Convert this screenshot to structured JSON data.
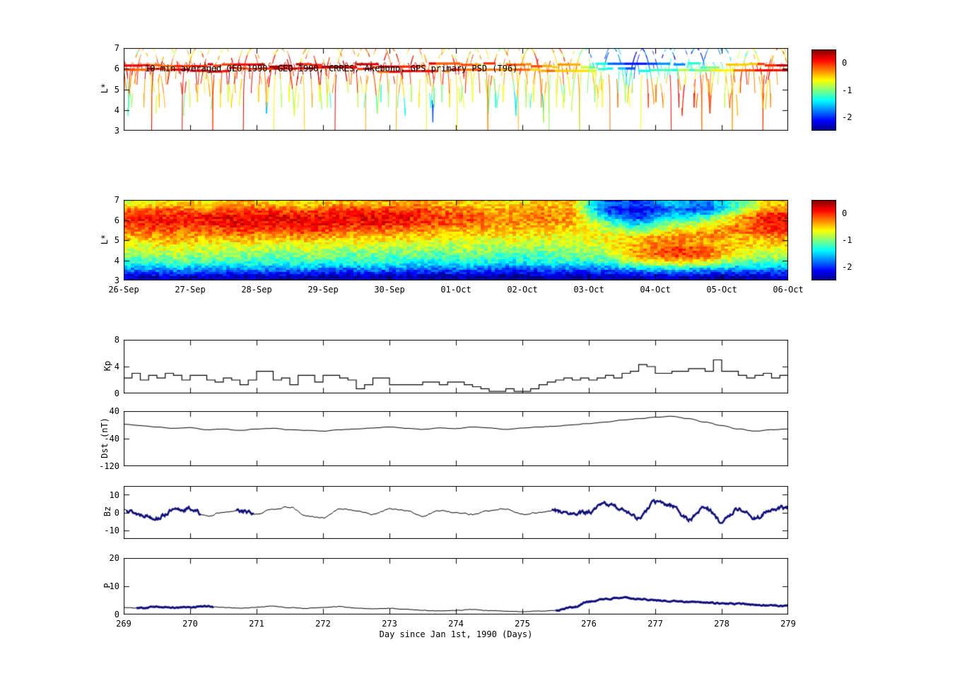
{
  "figure": {
    "background": "#ffffff"
  },
  "colors": {
    "axis": "#000000",
    "line": "#000000",
    "thick_line": "#10107a"
  },
  "colormap": {
    "name": "jet",
    "range": [
      -2.5,
      0.5
    ]
  },
  "chart_data": [
    {
      "id": "psd_scatter",
      "type": "scatter",
      "title": "10-min averaged GEO-1990, GEO-1990, CRRES, Akebono, GPS  primary PSD (T96)",
      "ylabel": "L*",
      "ylim": [
        3,
        7
      ],
      "yticks": [
        7,
        6,
        5,
        4,
        3
      ],
      "xlim": [
        269,
        279
      ],
      "colorbar": {
        "ticks": [
          0,
          -1,
          -2
        ],
        "range": [
          -2.5,
          0.5
        ]
      },
      "satellites": [
        {
          "name": "GEO-1990",
          "kind": "geo",
          "L": 5.95,
          "lw": 3.2
        },
        {
          "name": "GEO-1990",
          "kind": "geo",
          "L": 6.15,
          "lw": 3.2
        },
        {
          "name": "CRRES",
          "kind": "orbit",
          "period": 0.417,
          "phase": 0.1,
          "Lmin": 3.4,
          "Lmax": 7.0,
          "sharpness": 0.5,
          "lw": 1.3
        },
        {
          "name": "Akebono",
          "kind": "orbit",
          "period": 0.115,
          "phase": 0.32,
          "Lmin": 3.0,
          "Lmax": 6.3,
          "sharpness": 0.3,
          "lw": 1.0
        },
        {
          "name": "GPS",
          "kind": "orbit",
          "period": 0.5,
          "phase": 0.62,
          "Lmin": 4.1,
          "Lmax": 7.2,
          "sharpness": 0.7,
          "lw": 1.0
        }
      ]
    },
    {
      "id": "psd_map",
      "type": "heatmap",
      "ylabel": "L*",
      "ylim": [
        3,
        7
      ],
      "yticks": [
        7,
        6,
        5,
        4,
        3
      ],
      "xlim": [
        269,
        279
      ],
      "xtick_labels": [
        "26-Sep",
        "27-Sep",
        "28-Sep",
        "29-Sep",
        "30-Sep",
        "01-Oct",
        "02-Oct",
        "03-Oct",
        "04-Oct",
        "05-Oct",
        "06-Oct"
      ],
      "colorbar": {
        "ticks": [
          0,
          -1,
          -2
        ],
        "range": [
          -2.5,
          0.5
        ]
      },
      "grid": {
        "cols": 20,
        "rows": 12,
        "x0": 269,
        "x1": 279,
        "y_top": 7,
        "y_bottom": 3,
        "values": [
          [
            -0.7,
            -0.5,
            -0.6,
            -0.4,
            -0.5,
            -0.6,
            -0.4,
            -0.5,
            -0.3,
            -0.4,
            -0.5,
            -0.6,
            -0.5,
            -0.4,
            -1.8,
            -2.0,
            -1.5,
            -1.8,
            -1.2,
            -0.5
          ],
          [
            -0.2,
            -0.1,
            -0.3,
            0.0,
            -0.1,
            -0.2,
            0.0,
            -0.1,
            0.0,
            -0.2,
            -0.3,
            -0.4,
            -0.3,
            -0.4,
            -2.0,
            -2.2,
            -1.8,
            -2.0,
            -1.0,
            -0.2
          ],
          [
            0.1,
            0.0,
            0.2,
            0.1,
            0.2,
            0.1,
            0.2,
            0.2,
            0.1,
            0.0,
            -0.1,
            -0.3,
            -0.2,
            -0.3,
            -1.5,
            -2.0,
            -1.5,
            -1.2,
            -0.5,
            0.2
          ],
          [
            0.0,
            0.1,
            0.0,
            0.2,
            0.1,
            0.2,
            0.1,
            0.1,
            0.0,
            -0.1,
            -0.2,
            -0.3,
            -0.3,
            -0.4,
            -1.0,
            -1.5,
            -1.0,
            -0.8,
            -0.3,
            0.1
          ],
          [
            -0.2,
            -0.1,
            -0.2,
            0.0,
            -0.1,
            0.0,
            -0.1,
            -0.2,
            -0.2,
            -0.3,
            -0.4,
            -0.4,
            -0.5,
            -0.5,
            -0.8,
            -1.0,
            -0.6,
            -0.4,
            -0.2,
            0.0
          ],
          [
            -0.4,
            -0.3,
            -0.4,
            -0.3,
            -0.4,
            -0.3,
            -0.4,
            -0.4,
            -0.5,
            -0.5,
            -0.6,
            -0.6,
            -0.6,
            -0.7,
            -0.6,
            -0.5,
            -0.3,
            -0.3,
            -0.4,
            -0.3
          ],
          [
            -0.6,
            -0.5,
            -0.6,
            -0.6,
            -0.7,
            -0.6,
            -0.7,
            -0.7,
            -0.7,
            -0.8,
            -0.8,
            -0.8,
            -0.8,
            -0.8,
            -0.7,
            -0.4,
            -0.2,
            -0.3,
            -0.5,
            -0.5
          ],
          [
            -0.8,
            -0.7,
            -0.8,
            -0.8,
            -0.9,
            -0.8,
            -0.9,
            -0.9,
            -0.9,
            -1.0,
            -0.9,
            -1.0,
            -1.0,
            -0.9,
            -0.8,
            -0.3,
            0.0,
            -0.1,
            -0.6,
            -0.7
          ],
          [
            -1.0,
            -0.9,
            -1.0,
            -1.0,
            -1.1,
            -1.0,
            -1.1,
            -1.1,
            -1.1,
            -1.2,
            -1.1,
            -1.2,
            -1.2,
            -1.1,
            -1.0,
            -0.4,
            -0.1,
            -0.2,
            -0.8,
            -0.9
          ],
          [
            -1.3,
            -1.2,
            -1.3,
            -1.3,
            -1.3,
            -1.3,
            -1.4,
            -1.3,
            -1.4,
            -1.4,
            -1.4,
            -1.5,
            -1.4,
            -1.4,
            -1.3,
            -0.9,
            -0.7,
            -0.8,
            -1.2,
            -1.2
          ],
          [
            -1.8,
            -1.7,
            -1.8,
            -1.8,
            -1.8,
            -1.8,
            -1.9,
            -1.8,
            -1.9,
            -1.9,
            -1.9,
            -2.0,
            -1.9,
            -1.9,
            -1.9,
            -1.7,
            -1.6,
            -1.7,
            -1.8,
            -1.8
          ],
          [
            -2.3,
            -2.3,
            -2.4,
            -2.3,
            -2.4,
            -2.4,
            -2.4,
            -2.4,
            -2.4,
            -2.4,
            -2.4,
            -2.5,
            -2.4,
            -2.4,
            -2.4,
            -2.4,
            -2.3,
            -2.4,
            -2.4,
            -2.3
          ]
        ]
      }
    },
    {
      "id": "kp",
      "type": "line",
      "style": "step",
      "ylabel": "Kp",
      "ylim": [
        0,
        8
      ],
      "yticks": [
        8,
        4,
        0
      ],
      "xlim": [
        269,
        279
      ],
      "x0": 269,
      "dx": 0.125,
      "values": [
        2.3,
        3,
        2,
        2.7,
        2.3,
        3,
        2.7,
        2,
        2.7,
        2.7,
        2,
        1.7,
        2.3,
        2,
        1.3,
        2,
        3.3,
        3.3,
        2,
        2.3,
        1.3,
        2.7,
        2.7,
        1.7,
        2.7,
        2.7,
        2.3,
        2,
        0.7,
        1.3,
        2.3,
        2.3,
        1.3,
        1.3,
        1.3,
        1.3,
        1.7,
        1.7,
        1.3,
        1.7,
        1.7,
        1.3,
        1,
        0.7,
        0.3,
        0.3,
        0.7,
        0.3,
        0.3,
        0.7,
        1.3,
        1.7,
        2,
        2.3,
        2,
        2.3,
        2,
        2.3,
        2.7,
        2.3,
        3,
        3.3,
        4.3,
        4,
        3,
        3,
        3.3,
        3.3,
        3.7,
        3.7,
        3.3,
        5,
        3.3,
        3.3,
        2.7,
        2.3,
        2.7,
        3,
        2.3,
        2.7
      ]
    },
    {
      "id": "dst",
      "type": "line",
      "style": "smooth",
      "ylabel": "Dst (nT)",
      "ylim": [
        -120,
        40
      ],
      "yticks": [
        40,
        -40,
        -120
      ],
      "xlim": [
        269,
        279
      ],
      "x0": 269,
      "dx": 0.25,
      "noise": 0.9,
      "values": [
        2,
        -2,
        -6,
        -10,
        -8,
        -14,
        -12,
        -16,
        -12,
        -10,
        -14,
        -16,
        -18,
        -14,
        -12,
        -9,
        -6,
        -10,
        -13,
        -9,
        -11,
        -6,
        -9,
        -13,
        -9,
        -6,
        -4,
        0,
        4,
        8,
        14,
        18,
        22,
        25,
        18,
        8,
        -2,
        -12,
        -18,
        -14,
        -12
      ]
    },
    {
      "id": "bz",
      "type": "line",
      "style": "smooth",
      "ylabel": "Bz",
      "ylim": [
        -15,
        15
      ],
      "yticks": [
        10,
        0,
        -10
      ],
      "xlim": [
        269,
        279
      ],
      "x0": 269,
      "dx": 0.25,
      "noise": 0.7,
      "thick_noise": 2.4,
      "thick_regions": [
        [
          269.05,
          270.15
        ],
        [
          270.7,
          270.95
        ],
        [
          275.45,
          279
        ]
      ],
      "values": [
        2,
        -1,
        -3,
        1,
        2,
        -2,
        0,
        1,
        -1,
        2,
        3,
        -2,
        -3,
        2,
        1,
        -1,
        2,
        1,
        -2,
        1,
        0,
        -1,
        1,
        2,
        -1,
        0,
        1,
        -1,
        0,
        5,
        2,
        -3,
        6,
        4,
        -4,
        3,
        -5,
        2,
        -3,
        1,
        3
      ]
    },
    {
      "id": "p",
      "type": "line",
      "style": "smooth",
      "ylabel": "P",
      "ylim": [
        0,
        20
      ],
      "yticks": [
        20,
        10,
        0
      ],
      "xlim": [
        269,
        279
      ],
      "xticks": [
        269,
        270,
        271,
        272,
        273,
        274,
        275,
        276,
        277,
        278,
        279
      ],
      "xlabel": "Day since Jan 1st, 1990 (Days)",
      "x0": 269,
      "dx": 0.25,
      "noise": 0.2,
      "thick_noise": 0.45,
      "thick_regions": [
        [
          269.2,
          270.35
        ],
        [
          275.5,
          279
        ]
      ],
      "values": [
        2.5,
        2.3,
        2.8,
        2.4,
        2.6,
        2.9,
        2.5,
        2.2,
        2.6,
        3.0,
        2.4,
        2.2,
        2.5,
        2.8,
        2.3,
        2.0,
        2.2,
        1.8,
        1.5,
        1.3,
        1.5,
        1.8,
        1.4,
        1.2,
        1.0,
        1.2,
        1.5,
        2.5,
        4.5,
        5.5,
        6.0,
        5.5,
        5.0,
        4.8,
        4.5,
        4.2,
        4.0,
        3.8,
        3.5,
        3.2,
        3.0
      ]
    }
  ]
}
